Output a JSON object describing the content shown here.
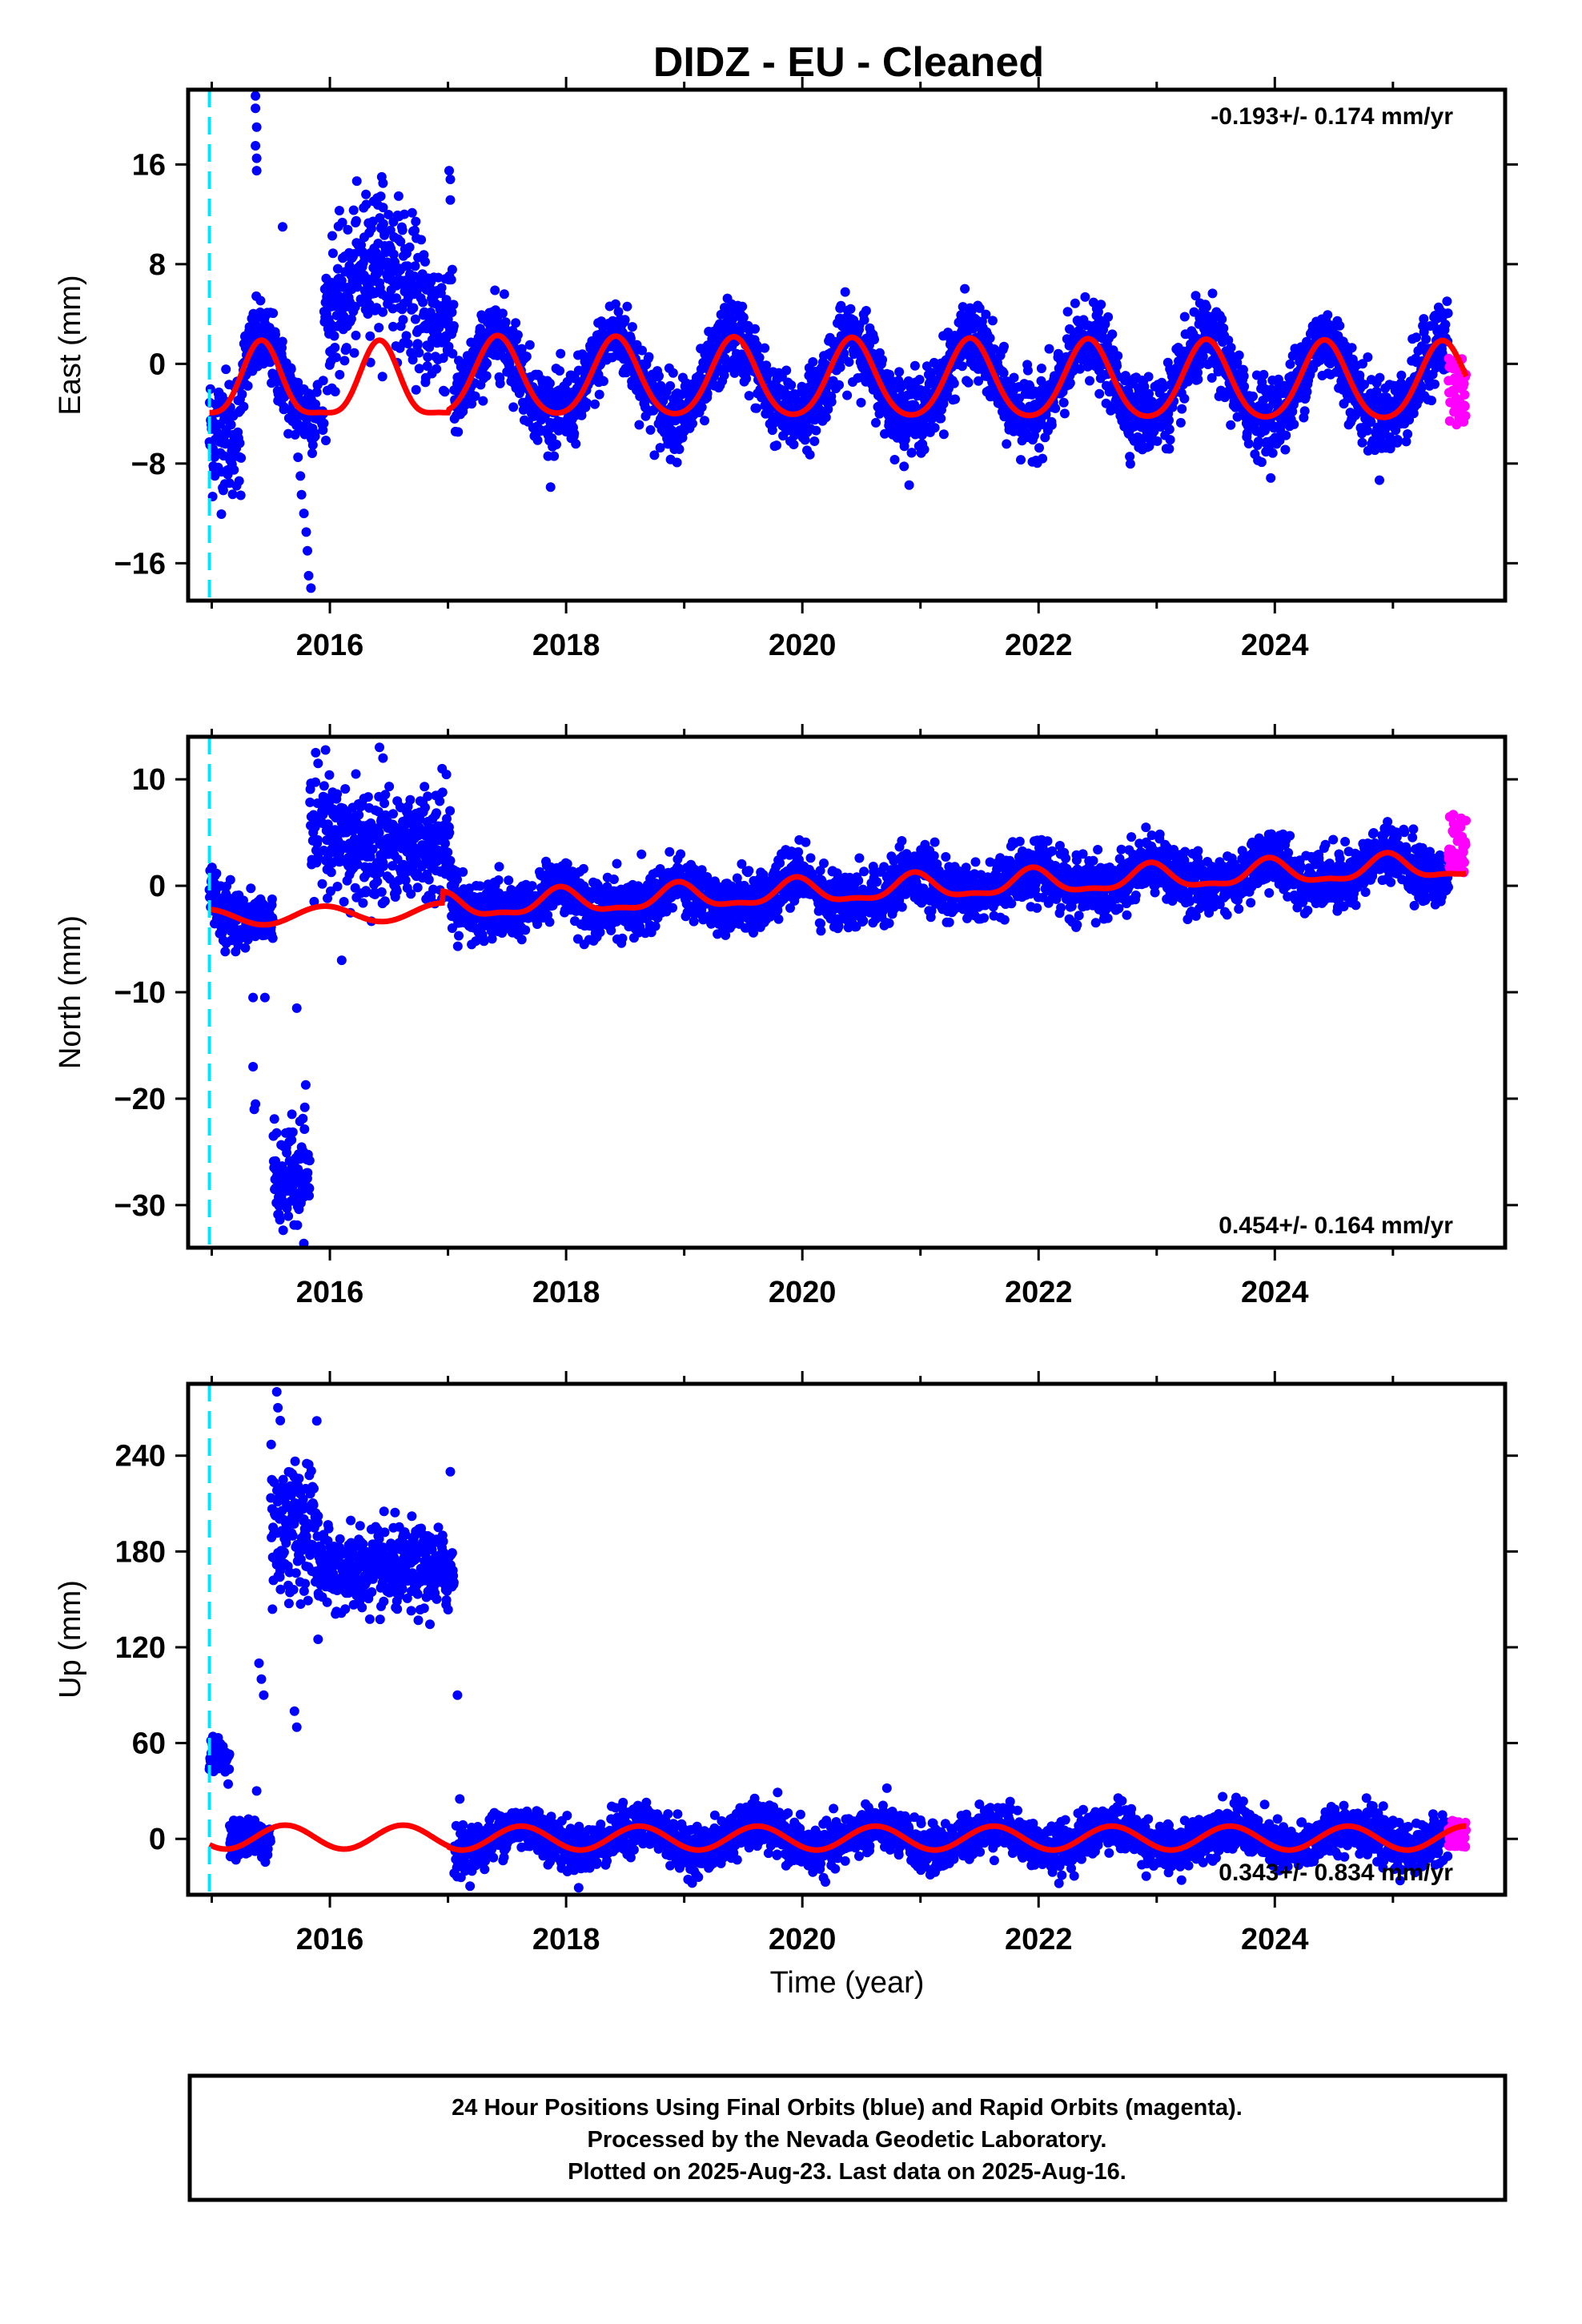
{
  "title": "DIDZ  - EU - Cleaned",
  "xlabel": "Time (year)",
  "footer": {
    "line1": "24 Hour Positions Using Final Orbits (blue) and Rapid Orbits (magenta).",
    "line2": "Processed by the Nevada Geodetic Laboratory.",
    "line3": "Plotted on 2025-Aug-23. Last data on 2025-Aug-16."
  },
  "colors": {
    "final": "#0000ff",
    "rapid": "#ff00ff",
    "model": "#ff0000",
    "break": "#00e5ff",
    "frame": "#000000"
  },
  "chart_data": [
    {
      "type": "scatter",
      "ylabel": "East (mm)",
      "rate_text": "-0.193+/- 0.174 mm/yr",
      "rate_position": "top-right",
      "xlim": [
        2014.8,
        2025.95
      ],
      "ylim": [
        -19.0,
        22.0
      ],
      "xticks": [
        2016,
        2018,
        2020,
        2022,
        2024
      ],
      "yticks": [
        -16,
        -8,
        0,
        8,
        16
      ],
      "break_year": 2014.98,
      "model": {
        "offset": -1.2,
        "early_annual_amp": 2.9,
        "annual_amp": 3.1,
        "semi_amp": 0.4,
        "phase_peak": 0.42
      },
      "outliers": [
        [
          2015.37,
          21.5
        ],
        [
          2015.37,
          20.5
        ],
        [
          2015.38,
          19.0
        ],
        [
          2015.37,
          17.5
        ],
        [
          2015.38,
          16.5
        ],
        [
          2015.38,
          15.5
        ],
        [
          2015.73,
          -7.5
        ],
        [
          2015.75,
          -9.0
        ],
        [
          2015.76,
          -10.5
        ],
        [
          2015.78,
          -12.0
        ],
        [
          2015.8,
          -13.5
        ],
        [
          2015.81,
          -15.0
        ],
        [
          2015.82,
          -17.0
        ],
        [
          2015.84,
          -18.0
        ],
        [
          2017.01,
          15.5
        ],
        [
          2017.02,
          14.8
        ],
        [
          2016.45,
          14.5
        ],
        [
          2015.6,
          11.0
        ]
      ],
      "rapid_segment": {
        "start": 2025.47,
        "end": 2025.62,
        "range": [
          -5.0,
          0.5
        ]
      }
    },
    {
      "type": "scatter",
      "ylabel": "North (mm)",
      "rate_text": "0.454+/- 0.164 mm/yr",
      "rate_position": "bottom-right",
      "xlim": [
        2014.8,
        2025.95
      ],
      "ylim": [
        -34.0,
        14.0
      ],
      "xticks": [
        2016,
        2018,
        2020,
        2022,
        2024
      ],
      "yticks": [
        -30,
        -20,
        -10,
        0,
        10
      ],
      "break_year": 2014.98,
      "model": {
        "offset_2017": -2.0,
        "rate": 0.454,
        "annual_amp": 1.1,
        "phase_peak": 0.95
      },
      "outliers": [
        [
          2015.35,
          -10.5
        ],
        [
          2015.45,
          -10.5
        ],
        [
          2015.35,
          -17.0
        ],
        [
          2015.37,
          -20.5
        ],
        [
          2015.36,
          -21.0
        ],
        [
          2015.72,
          -11.5
        ],
        [
          2015.88,
          12.5
        ],
        [
          2015.9,
          11.5
        ],
        [
          2016.42,
          13.0
        ],
        [
          2016.45,
          12.0
        ],
        [
          2016.95,
          11.0
        ],
        [
          2016.1,
          -7.0
        ],
        [
          2018.1,
          -5.0
        ],
        [
          2020.3,
          -4.0
        ]
      ],
      "rapid_segment": {
        "start": 2025.47,
        "end": 2025.62,
        "range": [
          1.0,
          7.0
        ]
      }
    },
    {
      "type": "scatter",
      "ylabel": "Up (mm)",
      "rate_text": "0.343+/- 0.834 mm/yr",
      "rate_position": "bottom-right",
      "xlim": [
        2014.8,
        2025.95
      ],
      "ylim": [
        -35.0,
        285.0
      ],
      "xticks": [
        2016,
        2018,
        2020,
        2022,
        2024
      ],
      "yticks": [
        0,
        60,
        120,
        180,
        240
      ],
      "break_year": 2014.98,
      "model": {
        "offset": 0.5,
        "annual_amp": 7.5,
        "phase_peak": 0.62
      },
      "outliers": [
        [
          2015.55,
          280.0
        ],
        [
          2015.56,
          270.0
        ],
        [
          2015.58,
          262.0
        ],
        [
          2015.4,
          110.0
        ],
        [
          2015.42,
          100.0
        ],
        [
          2015.44,
          90.0
        ],
        [
          2015.38,
          30.0
        ],
        [
          2015.7,
          80.0
        ],
        [
          2015.72,
          70.0
        ],
        [
          2017.08,
          90.0
        ],
        [
          2017.1,
          25.0
        ],
        [
          2017.02,
          230.0
        ],
        [
          2016.72,
          190.0
        ],
        [
          2015.9,
          125.0
        ]
      ],
      "rapid_segment": {
        "start": 2025.47,
        "end": 2025.62,
        "range": [
          -5.0,
          12.0
        ]
      }
    }
  ]
}
